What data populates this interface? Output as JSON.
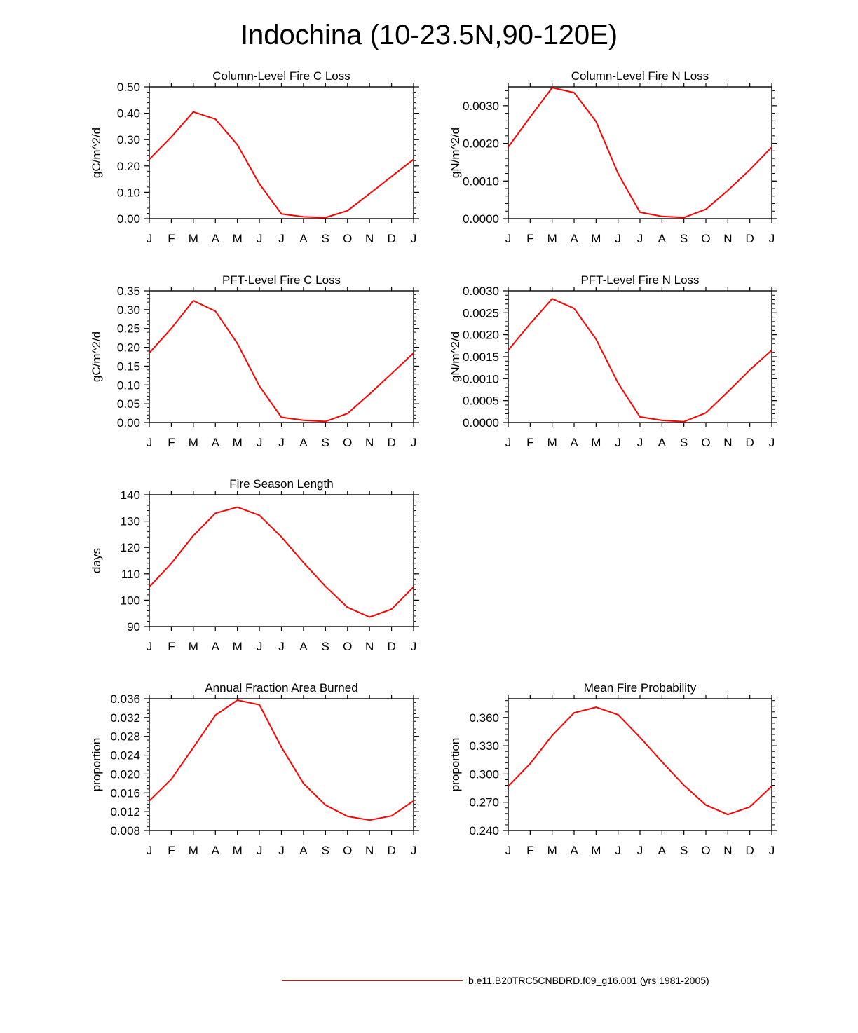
{
  "title": "Indochina (10-23.5N,90-120E)",
  "legend": {
    "label": "b.e11.B20TRC5CNBDRD.f09_g16.001 (yrs 1981-2005)",
    "color": "#ff0000"
  },
  "chart_data": [
    {
      "type": "line",
      "title": "Column-Level Fire C Loss",
      "ylabel": "gC/m^2/d",
      "categories": [
        "J",
        "F",
        "M",
        "A",
        "M",
        "J",
        "J",
        "A",
        "S",
        "O",
        "N",
        "D",
        "J"
      ],
      "ylim": [
        0,
        0.5
      ],
      "yticks": [
        "0.00",
        "0.10",
        "0.20",
        "0.30",
        "0.40",
        "0.50"
      ],
      "series": [
        {
          "name": "b.e11.B20TRC5CNBDRD.f09_g16.001 (yrs 1981-2005)",
          "values": [
            0.225,
            0.31,
            0.405,
            0.378,
            0.28,
            0.132,
            0.018,
            0.007,
            0.004,
            0.03,
            0.095,
            0.16,
            0.225
          ]
        }
      ]
    },
    {
      "type": "line",
      "title": "Column-Level Fire N Loss",
      "ylabel": "gN/m^2/d",
      "categories": [
        "J",
        "F",
        "M",
        "A",
        "M",
        "J",
        "J",
        "A",
        "S",
        "O",
        "N",
        "D",
        "J"
      ],
      "ylim": [
        0,
        0.0035
      ],
      "yticks": [
        "0.0000",
        "0.0010",
        "0.0020",
        "0.0030"
      ],
      "series": [
        {
          "name": "b.e11.B20TRC5CNBDRD.f09_g16.001 (yrs 1981-2005)",
          "values": [
            0.0019,
            0.0027,
            0.00348,
            0.00335,
            0.00258,
            0.0012,
            0.00017,
            6e-05,
            3e-05,
            0.00025,
            0.00075,
            0.0013,
            0.0019
          ]
        }
      ]
    },
    {
      "type": "line",
      "title": "PFT-Level Fire C Loss",
      "ylabel": "gC/m^2/d",
      "categories": [
        "J",
        "F",
        "M",
        "A",
        "M",
        "J",
        "J",
        "A",
        "S",
        "O",
        "N",
        "D",
        "J"
      ],
      "ylim": [
        0,
        0.35
      ],
      "yticks": [
        "0.00",
        "0.05",
        "0.10",
        "0.15",
        "0.20",
        "0.25",
        "0.30",
        "0.35"
      ],
      "series": [
        {
          "name": "b.e11.B20TRC5CNBDRD.f09_g16.001 (yrs 1981-2005)",
          "values": [
            0.185,
            0.25,
            0.324,
            0.296,
            0.21,
            0.097,
            0.014,
            0.006,
            0.003,
            0.024,
            0.076,
            0.13,
            0.185
          ]
        }
      ]
    },
    {
      "type": "line",
      "title": "PFT-Level Fire N Loss",
      "ylabel": "gN/m^2/d",
      "categories": [
        "J",
        "F",
        "M",
        "A",
        "M",
        "J",
        "J",
        "A",
        "S",
        "O",
        "N",
        "D",
        "J"
      ],
      "ylim": [
        0,
        0.003
      ],
      "yticks": [
        "0.0000",
        "0.0005",
        "0.0010",
        "0.0015",
        "0.0020",
        "0.0025",
        "0.0030"
      ],
      "series": [
        {
          "name": "b.e11.B20TRC5CNBDRD.f09_g16.001 (yrs 1981-2005)",
          "values": [
            0.00165,
            0.00225,
            0.00282,
            0.0026,
            0.0019,
            0.0009,
            0.00013,
            5e-05,
            2e-05,
            0.00022,
            0.0007,
            0.0012,
            0.00165
          ]
        }
      ]
    },
    {
      "type": "line",
      "title": "Fire Season Length",
      "ylabel": "days",
      "categories": [
        "J",
        "F",
        "M",
        "A",
        "M",
        "J",
        "J",
        "A",
        "S",
        "O",
        "N",
        "D",
        "J"
      ],
      "ylim": [
        90,
        140
      ],
      "yticks": [
        "90",
        "100",
        "110",
        "120",
        "130",
        "140"
      ],
      "series": [
        {
          "name": "b.e11.B20TRC5CNBDRD.f09_g16.001 (yrs 1981-2005)",
          "values": [
            105,
            114,
            124.5,
            133,
            135.3,
            132.2,
            124,
            114.3,
            105.2,
            97.3,
            93.6,
            96.6,
            105
          ]
        }
      ]
    },
    {
      "type": "line",
      "title": "Annual Fraction Area Burned",
      "ylabel": "proportion",
      "categories": [
        "J",
        "F",
        "M",
        "A",
        "M",
        "J",
        "J",
        "A",
        "S",
        "O",
        "N",
        "D",
        "J"
      ],
      "ylim": [
        0.008,
        0.036
      ],
      "yticks": [
        "0.008",
        "0.012",
        "0.016",
        "0.020",
        "0.024",
        "0.028",
        "0.032",
        "0.036"
      ],
      "series": [
        {
          "name": "b.e11.B20TRC5CNBDRD.f09_g16.001 (yrs 1981-2005)",
          "values": [
            0.0143,
            0.0189,
            0.0256,
            0.0325,
            0.0357,
            0.0347,
            0.0257,
            0.018,
            0.0134,
            0.011,
            0.0102,
            0.0111,
            0.0143
          ]
        }
      ]
    },
    {
      "type": "line",
      "title": "Mean Fire Probability",
      "ylabel": "proportion",
      "categories": [
        "J",
        "F",
        "M",
        "A",
        "M",
        "J",
        "J",
        "A",
        "S",
        "O",
        "N",
        "D",
        "J"
      ],
      "ylim": [
        0.24,
        0.38
      ],
      "yticks": [
        "0.240",
        "0.270",
        "0.300",
        "0.330",
        "0.360"
      ],
      "series": [
        {
          "name": "b.e11.B20TRC5CNBDRD.f09_g16.001 (yrs 1981-2005)",
          "values": [
            0.287,
            0.311,
            0.341,
            0.365,
            0.371,
            0.363,
            0.339,
            0.313,
            0.288,
            0.267,
            0.257,
            0.265,
            0.287
          ]
        }
      ]
    }
  ]
}
